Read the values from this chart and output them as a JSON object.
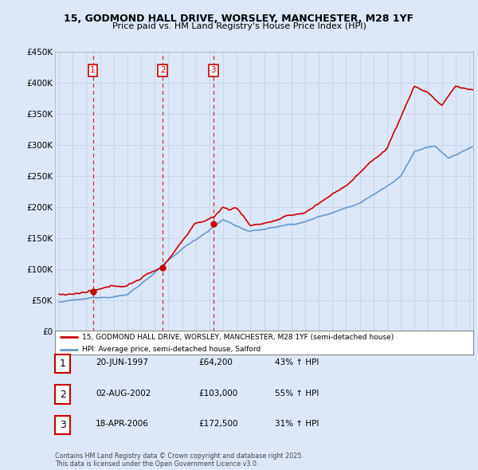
{
  "title": "15, GODMOND HALL DRIVE, WORSLEY, MANCHESTER, M28 1YF",
  "subtitle": "Price paid vs. HM Land Registry's House Price Index (HPI)",
  "legend_line1": "15, GODMOND HALL DRIVE, WORSLEY, MANCHESTER, M28 1YF (semi-detached house)",
  "legend_line2": "HPI: Average price, semi-detached house, Salford",
  "sales": [
    {
      "label": "1",
      "date": "20-JUN-1997",
      "price": 64200,
      "year": 1997.47,
      "hpi_pct": "43% ↑ HPI"
    },
    {
      "label": "2",
      "date": "02-AUG-2002",
      "price": 103000,
      "year": 2002.58,
      "hpi_pct": "55% ↑ HPI"
    },
    {
      "label": "3",
      "date": "18-APR-2006",
      "price": 172500,
      "year": 2006.29,
      "hpi_pct": "31% ↑ HPI"
    }
  ],
  "copyright_text": "Contains HM Land Registry data © Crown copyright and database right 2025.\nThis data is licensed under the Open Government Licence v3.0.",
  "red_color": "#cc0000",
  "blue_color": "#6699cc",
  "grid_color": "#c8d4e8",
  "background_color": "#dce8f8",
  "plot_bg_color": "#dce8f8",
  "ylim": [
    0,
    450000
  ],
  "xlim_start": 1994.7,
  "xlim_end": 2025.3
}
